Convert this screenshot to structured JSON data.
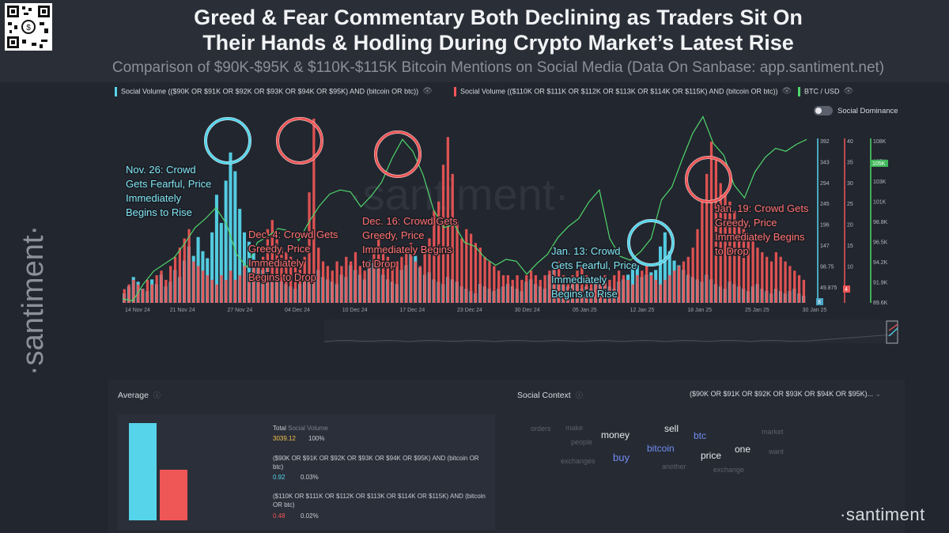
{
  "header": {
    "title_line1": "Greed & Fear Commentary Both Declining as Traders Sit On",
    "title_line2": "Their Hands & Hodling During Crypto Market’s Latest Rise",
    "subtitle": "Comparison of $90K-$95K & $110K-$115K Bitcoin Mentions on Social Media (Data On Sanbase: app.santiment.net)"
  },
  "legend": {
    "series1": "Social Volume (($90K OR $91K OR $92K OR $93K OR $94K OR $95K) AND (bitcoin OR btc))",
    "series2": "Social Volume (($110K OR $111K OR $112K OR $113K OR $114K OR $115K) AND (bitcoin OR btc))",
    "series3": "BTC / USD",
    "toggle_label": "Social Dominance"
  },
  "colors": {
    "cyan": "#56d4ea",
    "red": "#ef5656",
    "green": "#4fd66a",
    "bg": "#22262f"
  },
  "watermark": {
    "side": "·santiment·",
    "center": "·santiment·",
    "brand": "·santiment"
  },
  "annotations": [
    {
      "id": "nov26",
      "lines": [
        "Nov. 26: Crowd",
        "Gets Fearful, Price",
        "Immediately",
        "Begins to Rise"
      ],
      "color": "cyan"
    },
    {
      "id": "dec4",
      "lines": [
        "Dec. 4: Crowd Gets",
        "Greedy, Price",
        "Immediately",
        "Begins to Drop"
      ],
      "color": "red"
    },
    {
      "id": "dec16",
      "lines": [
        "Dec. 16: Crowd Gets",
        "Greedy, Price",
        "Immediately Begins",
        "to Drop"
      ],
      "color": "red"
    },
    {
      "id": "jan13",
      "lines": [
        "Jan. 13: Crowd",
        "Gets Fearful, Price",
        "Immediately",
        "Begins to Rise"
      ],
      "color": "cyan"
    },
    {
      "id": "jan19",
      "lines": [
        "Jan. 19: Crowd Gets",
        "Greedy, Price",
        "Immediately Begins",
        "to Drop"
      ],
      "color": "red"
    }
  ],
  "chart_data": {
    "type": "bar",
    "x_ticks": [
      "14 Nov 24",
      "21 Nov 24",
      "27 Nov 24",
      "04 Dec 24",
      "10 Dec 24",
      "17 Dec 24",
      "23 Dec 24",
      "30 Dec 24",
      "05 Jan 25",
      "12 Jan 25",
      "18 Jan 25",
      "25 Jan 25",
      "30 Jan 25"
    ],
    "axis_cyan": {
      "ticks": [
        "392",
        "343",
        "294",
        "245",
        "196",
        "147",
        "98.75",
        "49.875"
      ],
      "current": "8"
    },
    "axis_red": {
      "ticks": [
        "40",
        "35",
        "30",
        "25",
        "20",
        "15",
        "10",
        "5"
      ],
      "current": "4"
    },
    "axis_price": {
      "ticks": [
        "108K",
        "105K",
        "103K",
        "101K",
        "98.8K",
        "96.5K",
        "94.2K",
        "91.9K",
        "89.6K"
      ],
      "current": "105K"
    },
    "series": [
      {
        "name": "Social Volume (($90K OR $91K OR $92K OR $93K OR $94K OR $95K) AND (bitcoin OR btc))",
        "axis": "left",
        "values": [
          20,
          35,
          55,
          45,
          30,
          25,
          50,
          40,
          60,
          35,
          45,
          70,
          55,
          90,
          120,
          100,
          140,
          110,
          95,
          150,
          230,
          170,
          260,
          320,
          280,
          200,
          150,
          130,
          110,
          90,
          70,
          80,
          60,
          50,
          45,
          40,
          35,
          30,
          40,
          50,
          45,
          60,
          70,
          55,
          50,
          45,
          40,
          60,
          55,
          80,
          70,
          60,
          50,
          90,
          85,
          75,
          60,
          50,
          45,
          40,
          70,
          80,
          110,
          100,
          75,
          60,
          65,
          50,
          45,
          40,
          55,
          50,
          45,
          35,
          30,
          25,
          20,
          40,
          35,
          30,
          25,
          30,
          35,
          40,
          35,
          30,
          25,
          45,
          50,
          40,
          35,
          30,
          60,
          70,
          45,
          40,
          35,
          50,
          40,
          30,
          35,
          30,
          40,
          45,
          40,
          35,
          30,
          45,
          50,
          60,
          75,
          80,
          55,
          60,
          65,
          70,
          120,
          150,
          110,
          90,
          80,
          70,
          60,
          55,
          50,
          45,
          60,
          50,
          40,
          35,
          30,
          45,
          40,
          35,
          30,
          25,
          35,
          40,
          30,
          25,
          20,
          30,
          25,
          20,
          25,
          30,
          20,
          15
        ]
      },
      {
        "name": "Social Volume (($110K OR $111K OR $112K OR $113K OR $114K OR $115K) AND (bitcoin OR btc))",
        "axis": "middle",
        "values": [
          3,
          4,
          5,
          4,
          3,
          5,
          4,
          6,
          7,
          5,
          8,
          10,
          12,
          14,
          16,
          9,
          8,
          7,
          6,
          5,
          4,
          6,
          5,
          7,
          5,
          6,
          8,
          6,
          9,
          8,
          10,
          16,
          18,
          14,
          12,
          11,
          10,
          9,
          8,
          10,
          24,
          40,
          12,
          9,
          8,
          7,
          9,
          8,
          10,
          9,
          11,
          8,
          7,
          9,
          12,
          14,
          11,
          10,
          8,
          9,
          10,
          12,
          13,
          9,
          8,
          11,
          14,
          20,
          22,
          30,
          36,
          28,
          18,
          14,
          16,
          15,
          13,
          12,
          10,
          9,
          8,
          7,
          6,
          6,
          5,
          6,
          5,
          6,
          7,
          6,
          5,
          6,
          7,
          8,
          9,
          6,
          5,
          6,
          7,
          8,
          6,
          5,
          4,
          5,
          6,
          5,
          6,
          7,
          6,
          5,
          4,
          6,
          7,
          8,
          6,
          5,
          4,
          5,
          6,
          7,
          8,
          9,
          10,
          12,
          16,
          22,
          28,
          35,
          31,
          26,
          24,
          22,
          20,
          18,
          17,
          15,
          14,
          12,
          11,
          10,
          9,
          11,
          10,
          9,
          8,
          7,
          6,
          5,
          4
        ]
      },
      {
        "name": "BTC / USD",
        "axis": "right",
        "values": [
          90000,
          89800,
          91500,
          92800,
          93500,
          94200,
          95600,
          97200,
          98100,
          99200,
          97600,
          94500,
          93200,
          95700,
          96300,
          97100,
          96900,
          95900,
          97800,
          99400,
          100600,
          101000,
          100800,
          99300,
          100400,
          101800,
          104200,
          106100,
          104900,
          102500,
          99000,
          97200,
          97500,
          95700,
          95300,
          94100,
          93400,
          94000,
          93800,
          92500,
          93600,
          94500,
          96200,
          97300,
          98100,
          99800,
          101000,
          96100,
          94300,
          93900,
          94800,
          96100,
          100000,
          101300,
          104100,
          106700,
          108400,
          105700,
          104500,
          101500,
          100200,
          102800,
          104300,
          105200,
          104900,
          105600,
          106100
        ]
      }
    ],
    "grid": false,
    "legend_position": "top"
  },
  "average_panel": {
    "title": "Average",
    "total_label": "Total",
    "total_suffix": "Social Volume",
    "total_value": "3039.12",
    "total_pct": "100%",
    "item1_label": "($90K OR $91K OR $92K OR $93K OR $94K OR $95K) AND (bitcoin OR btc)",
    "item1_value": "0.92",
    "item1_pct": "0.03%",
    "item2_label": "($110K OR $111K OR $112K OR $113K OR $114K OR $115K) AND (bitcoin OR btc)",
    "item2_value": "0.48",
    "item2_pct": "0.02%",
    "bar1_value": 0.92,
    "bar2_value": 0.48
  },
  "social_context": {
    "title": "Social Context",
    "dropdown": "($90K OR $91K OR $92K OR $93K OR $94K OR $95K)...",
    "words": [
      {
        "text": "orders",
        "tone": "dim"
      },
      {
        "text": "make",
        "tone": "dim"
      },
      {
        "text": "people",
        "tone": "dim"
      },
      {
        "text": "money",
        "tone": "bright"
      },
      {
        "text": "sell",
        "tone": "bright"
      },
      {
        "text": "btc",
        "tone": "blue"
      },
      {
        "text": "market",
        "tone": "dim"
      },
      {
        "text": "exchanges",
        "tone": "dim"
      },
      {
        "text": "buy",
        "tone": "blue"
      },
      {
        "text": "bitcoin",
        "tone": "blue"
      },
      {
        "text": "price",
        "tone": "bright"
      },
      {
        "text": "one",
        "tone": "bright"
      },
      {
        "text": "want",
        "tone": "dim"
      },
      {
        "text": "another",
        "tone": "dim"
      },
      {
        "text": "exchange",
        "tone": "dim"
      }
    ]
  }
}
